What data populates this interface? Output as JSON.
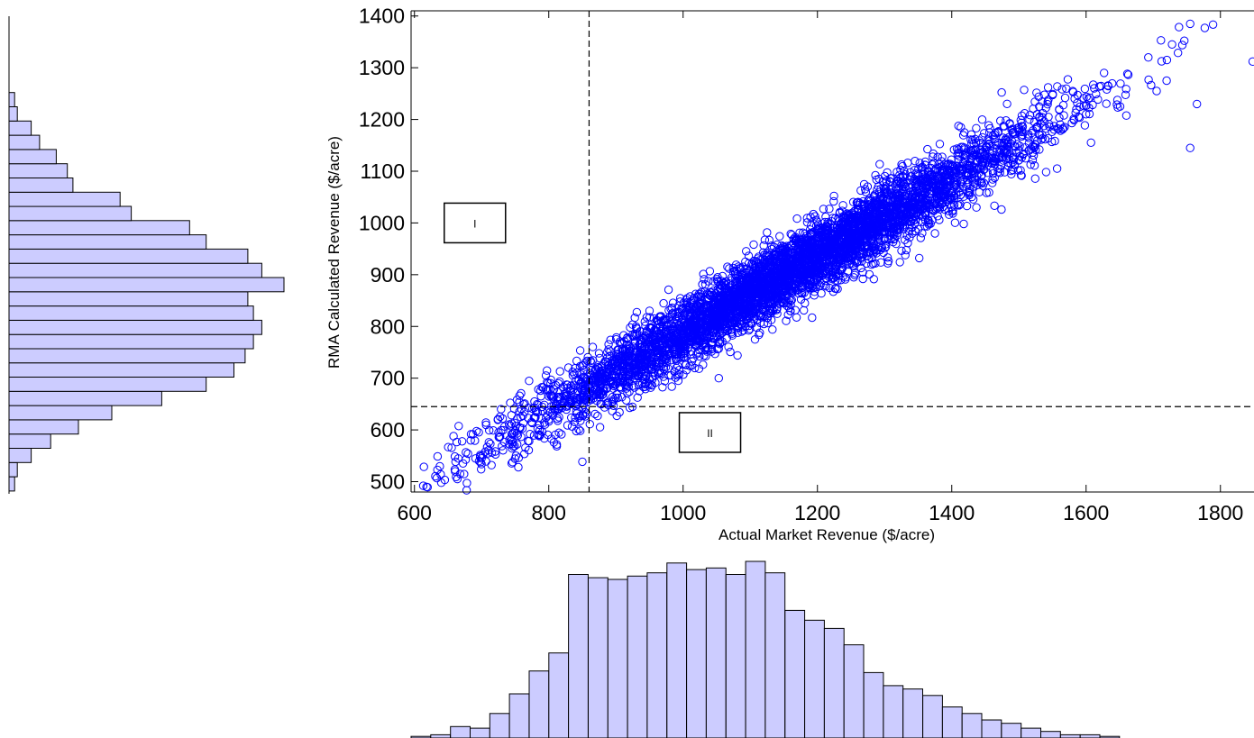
{
  "chart_data": [
    {
      "type": "scatter",
      "xlabel": "Actual Market Revenue ($/acre)",
      "ylabel": "RMA Calculated Revenue ($/acre)",
      "xlim": [
        595,
        1850
      ],
      "ylim": [
        480,
        1410
      ],
      "x_ticks": [
        600,
        800,
        1000,
        1200,
        1400,
        1600,
        1800
      ],
      "y_ticks": [
        500,
        600,
        700,
        800,
        900,
        1000,
        1100,
        1200,
        1300,
        1400
      ],
      "grid": false,
      "marker": "open-circle",
      "marker_color": "#0000ff",
      "reference_lines": {
        "vertical_x": 860,
        "horizontal_y": 645
      },
      "region_labels": [
        {
          "label": "I",
          "x": 690,
          "y": 1000
        },
        {
          "label": "II",
          "x": 1040,
          "y": 595
        }
      ],
      "series": [
        {
          "distribution": "linear trend",
          "points_count": 5000,
          "slope": 0.74,
          "intercept": 48,
          "x_mean": 1152,
          "x_sd": 195,
          "residual_sd": 33,
          "sample_points": [
            [
              618,
              490
            ],
            [
              640,
              498
            ],
            [
              700,
              545
            ],
            [
              745,
              580
            ],
            [
              800,
              620
            ],
            [
              860,
              660
            ],
            [
              920,
              695
            ],
            [
              1000,
              760
            ],
            [
              1100,
              830
            ],
            [
              1200,
              905
            ],
            [
              1300,
              980
            ],
            [
              1400,
              1060
            ],
            [
              1500,
              1140
            ],
            [
              1600,
              1210
            ],
            [
              1705,
              1255
            ],
            [
              1720,
              1275
            ],
            [
              1755,
              1385
            ],
            [
              1755,
              1145
            ],
            [
              1765,
              1230
            ],
            [
              1848,
              1312
            ]
          ]
        }
      ]
    },
    {
      "type": "bar",
      "orientation": "vertical",
      "role": "x-marginal-histogram",
      "bin_start": 595,
      "bin_width": 29.3,
      "fill_color": "#ccccff",
      "edge_color": "#000000",
      "values": [
        1,
        2,
        7,
        6,
        15,
        27,
        41,
        52,
        100,
        98,
        97,
        99,
        101,
        107,
        103,
        104,
        100,
        108,
        101,
        78,
        72,
        67,
        57,
        40,
        32,
        30,
        26,
        19,
        15,
        11,
        9,
        6,
        4,
        2,
        2,
        1
      ]
    },
    {
      "type": "bar",
      "orientation": "horizontal",
      "role": "y-marginal-histogram",
      "bin_start": 482,
      "bin_width": 27.5,
      "fill_color": "#ccccff",
      "edge_color": "#000000",
      "values": [
        2,
        3,
        8,
        15,
        25,
        37,
        55,
        71,
        81,
        85,
        88,
        91,
        88,
        86,
        99,
        91,
        86,
        71,
        65,
        44,
        40,
        23,
        21,
        17,
        11,
        8,
        3,
        2
      ]
    }
  ]
}
